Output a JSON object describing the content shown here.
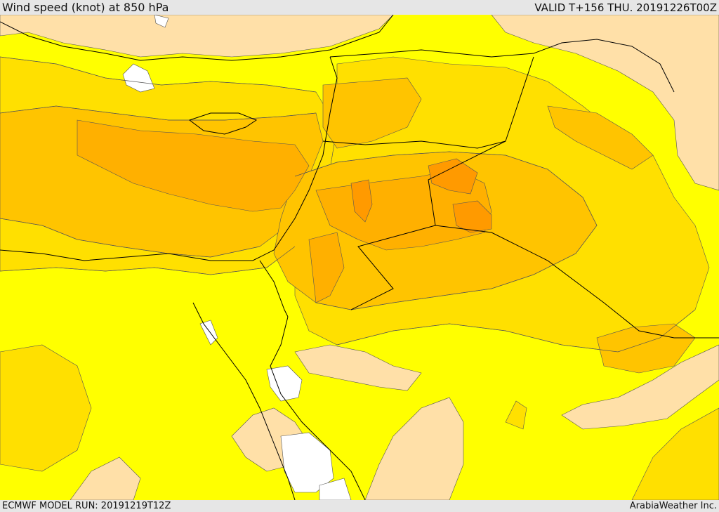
{
  "header": {
    "title": "Wind speed (knot) at 850 hPa",
    "valid": "VALID T+156 THU. 20191226T00Z"
  },
  "footer": {
    "model_run": "ECMWF MODEL RUN: 20191219T12Z",
    "credit": "ArabiaWeather Inc."
  },
  "map": {
    "fill_colors": {
      "calm": "#ffffff",
      "light": "#ffe0a8",
      "base": "#ffff00",
      "moderate": "#ffe000",
      "fresh": "#ffc400",
      "strong": "#ffb000",
      "strongest": "#ff9a00"
    },
    "line_colors": {
      "coast": "#000000",
      "contour": "#555555"
    }
  }
}
